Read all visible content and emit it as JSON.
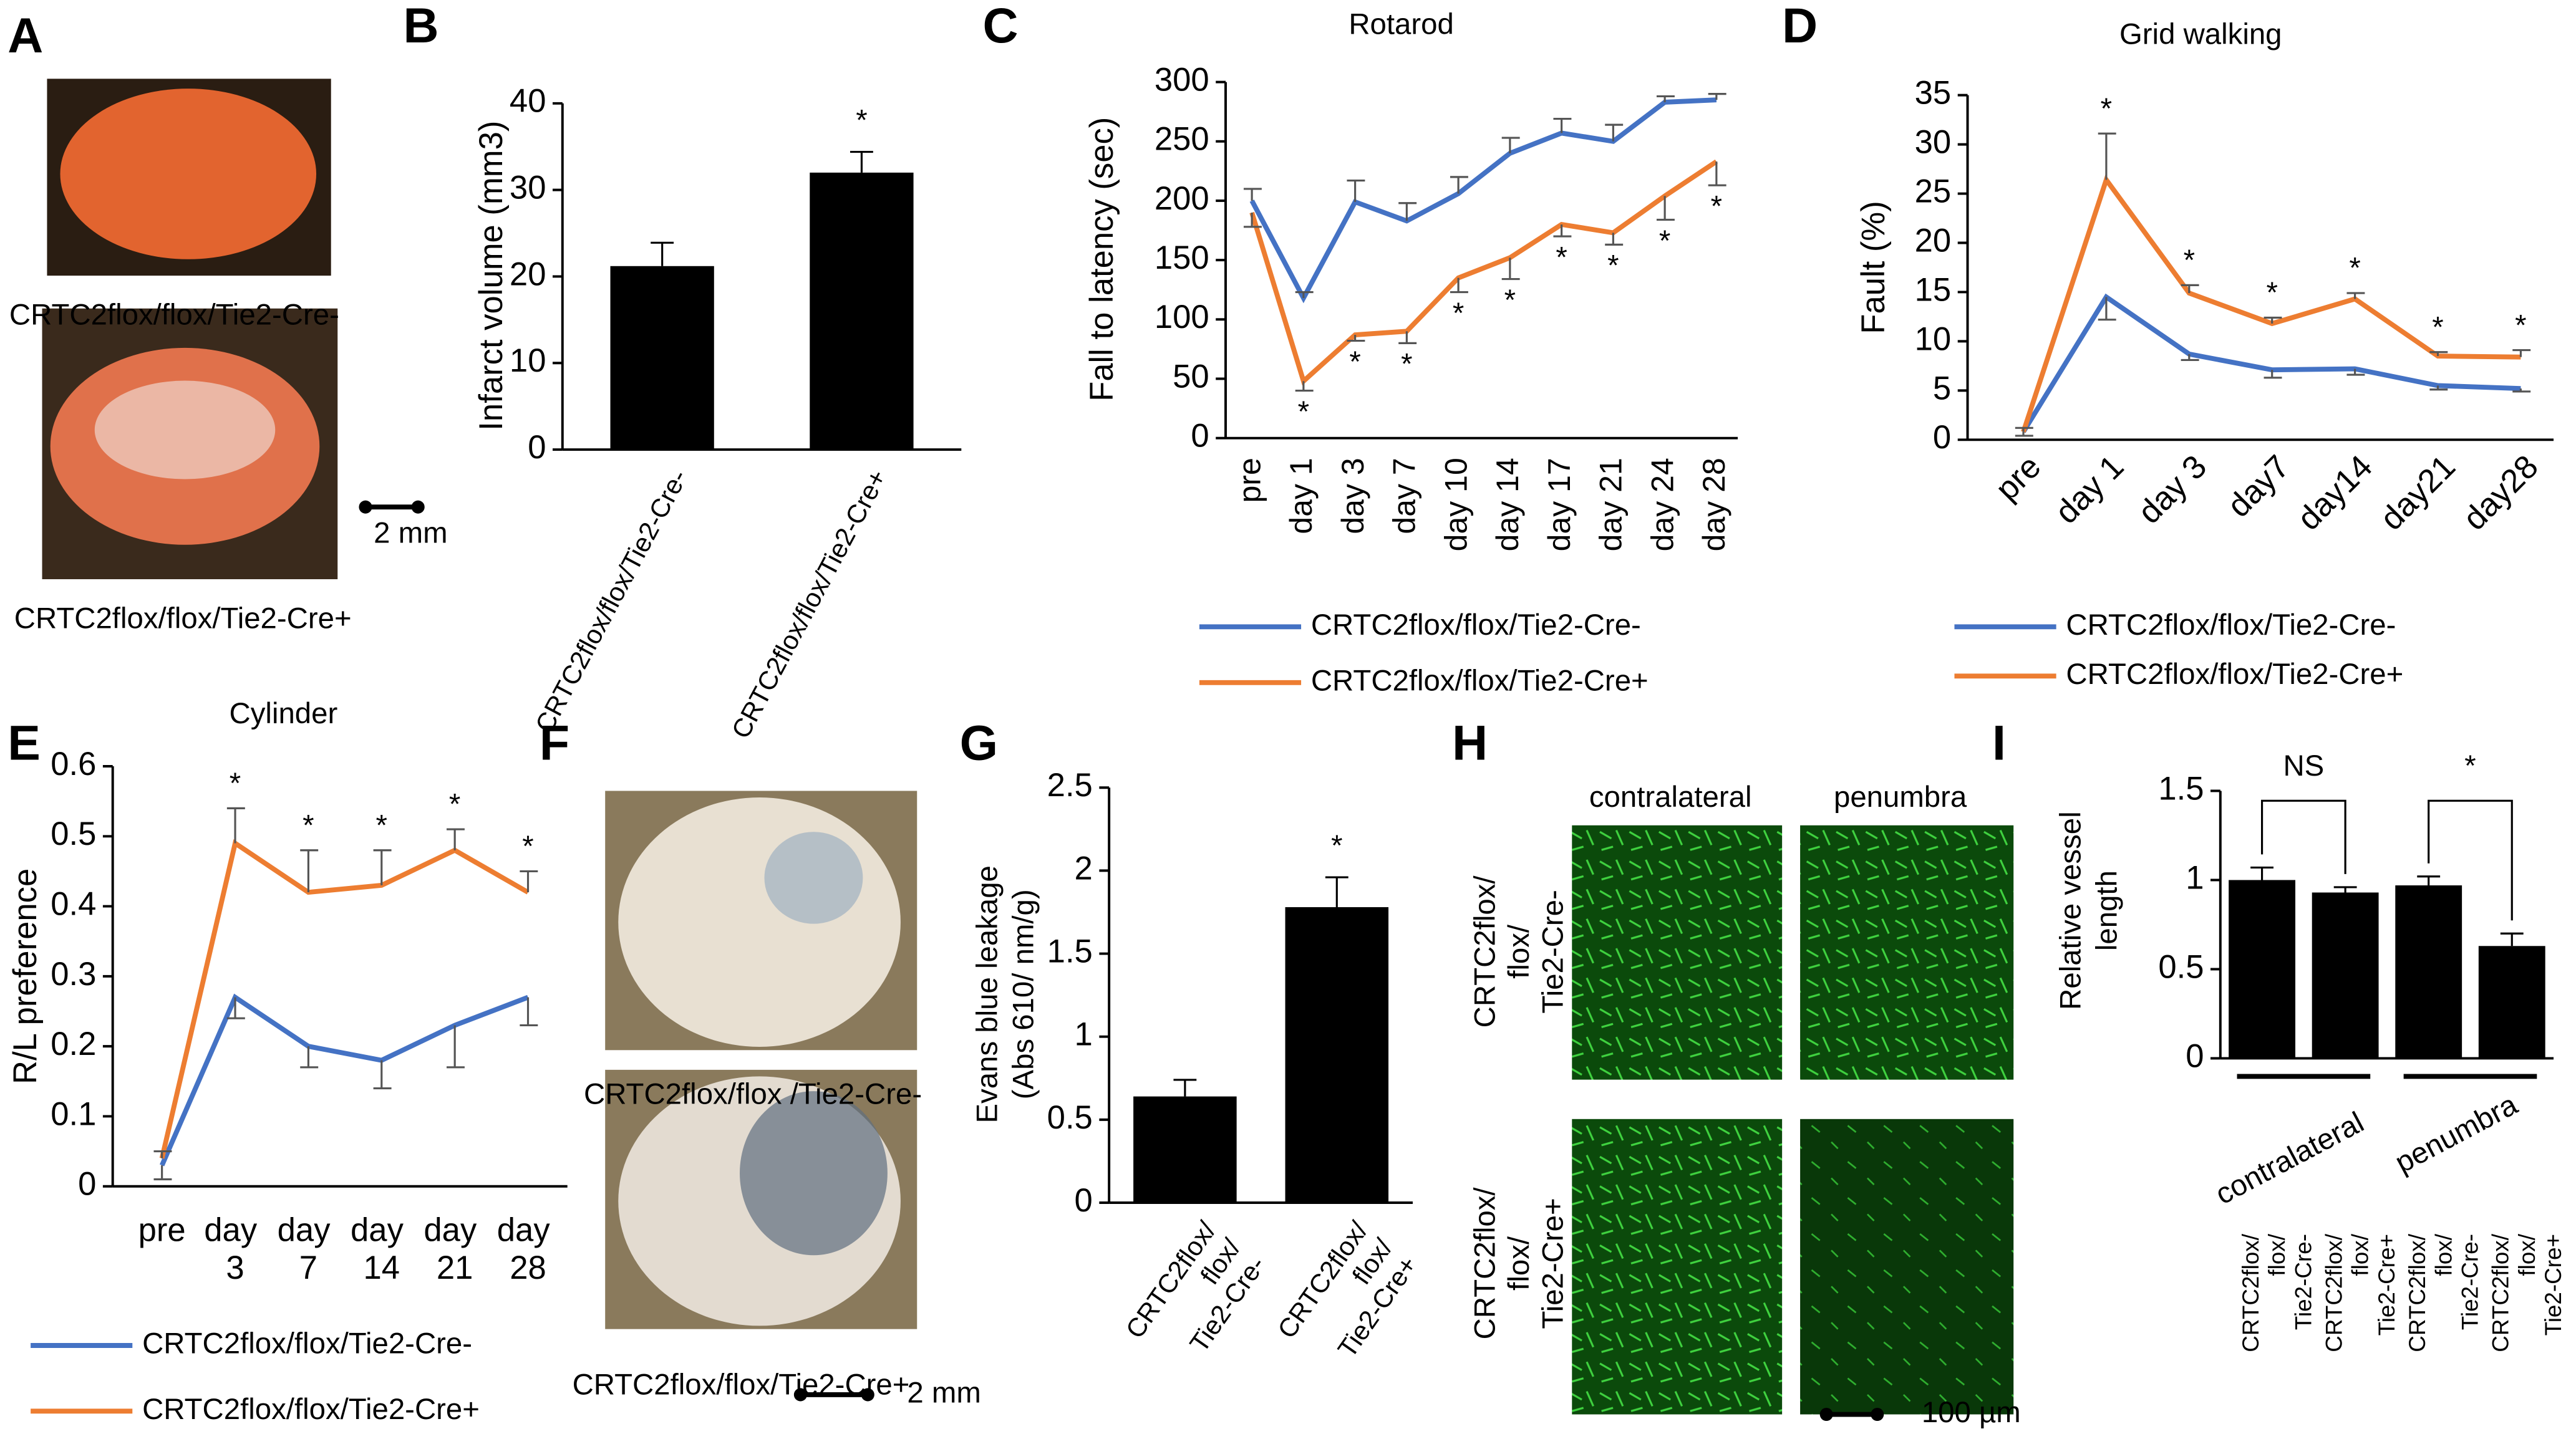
{
  "panel_labels": [
    "A",
    "B",
    "C",
    "D",
    "E",
    "F",
    "G",
    "H",
    "I"
  ],
  "images": {
    "A": {
      "captions": [
        "CRTC2flox/flox/Tie2-Cre-",
        "CRTC2flox/flox/Tie2-Cre+"
      ],
      "scale_bar": "2 mm"
    },
    "F": {
      "captions": [
        "CRTC2flox/flox /Tie2-Cre-",
        "CRTC2flox/flox/Tie2-Cre+"
      ],
      "scale_bar": "2 mm"
    },
    "H": {
      "columns": [
        "contralateral",
        "penumbra"
      ],
      "rows": [
        "CRTC2flox/flox/Tie2-Cre-",
        "CRTC2flox/flox/Tie2-Cre+"
      ],
      "scale_bar": "100 µm"
    }
  },
  "chart_data": [
    {
      "type": "bar",
      "ylabel": "Infarct volume (mm3)",
      "categories": [
        "CRTC2flox/flox/Tie2-Cre-",
        "CRTC2flox/flox/Tie2-Cre+"
      ],
      "values": [
        21.2,
        32
      ],
      "errors": [
        2.7,
        2.4
      ],
      "significance": [
        null,
        "*"
      ],
      "color": "#000000",
      "ylim": [
        0,
        40
      ],
      "yticks": [
        0,
        10,
        20,
        30,
        40
      ]
    },
    {
      "type": "line",
      "title": "Rotarod",
      "ylabel": "Fall to latency (sec)",
      "categories": [
        "pre",
        "day 1",
        "day 3",
        "day 7",
        "day 10",
        "day 14",
        "day 17",
        "day 21",
        "day 24",
        "day 28"
      ],
      "series": [
        {
          "name": "CRTC2flox/flox/Tie2-Cre-",
          "color": "#4472c4",
          "values": [
            200,
            118,
            199,
            183,
            206,
            240,
            257,
            250,
            283,
            285
          ],
          "errors": [
            10,
            5,
            18,
            15,
            14,
            13,
            12,
            14,
            5,
            5
          ],
          "error_direction": "up"
        },
        {
          "name": "CRTC2flox/flox/Tie2-Cre+",
          "color": "#ed7d31",
          "values": [
            190,
            48,
            87,
            90,
            135,
            152,
            180,
            173,
            204,
            233
          ],
          "errors": [
            12,
            8,
            5,
            10,
            12,
            18,
            10,
            10,
            20,
            20
          ],
          "error_direction": "down",
          "significance": [
            null,
            "*",
            "*",
            "*",
            "*",
            "*",
            "*",
            "*",
            "*",
            "*"
          ]
        }
      ],
      "ylim": [
        0,
        300
      ],
      "yticks": [
        0,
        50,
        100,
        150,
        200,
        250,
        300
      ],
      "legend": "bottom"
    },
    {
      "type": "line",
      "title": "Grid walking",
      "ylabel": "Fault (%)",
      "categories": [
        "pre",
        "day 1",
        "day 3",
        "day7",
        "day14",
        "day21",
        "day28"
      ],
      "series": [
        {
          "name": "CRTC2flox/flox/Tie2-Cre-",
          "color": "#4472c4",
          "values": [
            0.8,
            14.5,
            8.7,
            7.1,
            7.2,
            5.5,
            5.2
          ],
          "errors": [
            0.4,
            2.3,
            0.6,
            0.8,
            0.6,
            0.4,
            0.3
          ],
          "error_direction": "down"
        },
        {
          "name": "CRTC2flox/flox/Tie2-Cre+",
          "color": "#ed7d31",
          "values": [
            0.8,
            26.4,
            14.9,
            11.8,
            14.3,
            8.5,
            8.4
          ],
          "errors": [
            0.4,
            4.7,
            0.8,
            0.6,
            0.6,
            0.4,
            0.7
          ],
          "error_direction": "up",
          "significance": [
            null,
            "*",
            "*",
            "*",
            "*",
            "*",
            "*"
          ]
        }
      ],
      "ylim": [
        0,
        35
      ],
      "yticks": [
        0,
        5,
        10,
        15,
        20,
        25,
        30,
        35
      ],
      "legend": "bottom"
    },
    {
      "type": "line",
      "title": "Cylinder",
      "ylabel": "R/L preference",
      "categories": [
        "pre",
        "day 3",
        "day 7",
        "day 14",
        "day 21",
        "day 28"
      ],
      "series": [
        {
          "name": "CRTC2flox/flox/Tie2-Cre-",
          "color": "#4472c4",
          "values": [
            0.03,
            0.27,
            0.2,
            0.18,
            0.23,
            0.27
          ],
          "errors": [
            0.02,
            0.03,
            0.03,
            0.04,
            0.06,
            0.04
          ],
          "error_direction": "down"
        },
        {
          "name": "CRTC2flox/flox/Tie2-Cre+",
          "color": "#ed7d31",
          "values": [
            0.04,
            0.49,
            0.42,
            0.43,
            0.48,
            0.42
          ],
          "errors": [
            0.01,
            0.05,
            0.06,
            0.05,
            0.03,
            0.03
          ],
          "error_direction": "up",
          "significance": [
            null,
            "*",
            "*",
            "*",
            "*",
            "*"
          ]
        }
      ],
      "ylim": [
        0,
        0.6
      ],
      "yticks": [
        0,
        0.1,
        0.2,
        0.3,
        0.4,
        0.5,
        0.6
      ],
      "legend": "bottom"
    },
    {
      "type": "bar",
      "ylabel": [
        "Evans blue leakage",
        "(Abs 610/ nm/g)"
      ],
      "categories": [
        "CRTC2flox/flox/Tie2-Cre-",
        "CRTC2flox/flox/Tie2-Cre+"
      ],
      "values": [
        0.64,
        1.78
      ],
      "errors": [
        0.1,
        0.18
      ],
      "significance": [
        null,
        "*"
      ],
      "color": "#000000",
      "ylim": [
        0,
        2.5
      ],
      "yticks": [
        0,
        0.5,
        1,
        1.5,
        2,
        2.5
      ]
    },
    {
      "type": "bar",
      "ylabel": [
        "Relative vessel",
        "length"
      ],
      "categories": [
        "CRTC2flox/flox/Tie2-Cre-",
        "CRTC2flox/flox/Tie2-Cre+",
        "CRTC2flox/flox/Tie2-Cre-",
        "CRTC2flox/flox/Tie2-Cre+"
      ],
      "values": [
        1.0,
        0.93,
        0.97,
        0.63
      ],
      "errors": [
        0.07,
        0.03,
        0.05,
        0.07
      ],
      "color": "#000000",
      "groups": [
        "contralateral",
        "penumbra"
      ],
      "comparisons": [
        {
          "label": "NS",
          "pair": [
            0,
            1
          ]
        },
        {
          "label": "*",
          "pair": [
            2,
            3
          ]
        }
      ],
      "ylim": [
        0,
        1.5
      ],
      "yticks": [
        0,
        0.5,
        1,
        1.5
      ]
    }
  ]
}
